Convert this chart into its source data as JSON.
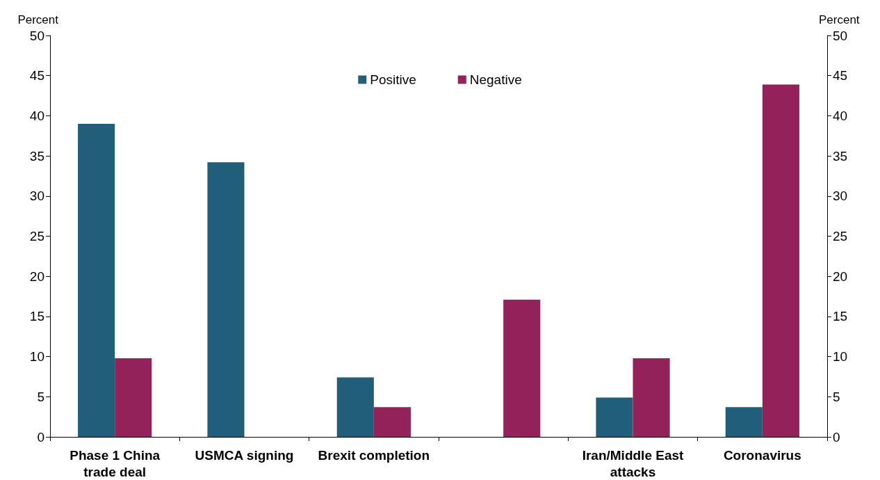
{
  "chart_data": {
    "type": "bar",
    "ylabel": "Percent",
    "y2label": "Percent",
    "categories": [
      "Phase 1 China\ntrade deal",
      "USMCA signing",
      "Brexit completion",
      null,
      "Iran/Middle East\nattacks",
      "Coronavirus"
    ],
    "series": [
      {
        "name": "Positive",
        "color": "#215e7a",
        "values": [
          39,
          34.2,
          7.4,
          0,
          4.9,
          3.7
        ]
      },
      {
        "name": "Negative",
        "color": "#93215a",
        "values": [
          9.8,
          0,
          3.7,
          17.1,
          9.8,
          43.9
        ]
      }
    ],
    "ylim": [
      0,
      50
    ],
    "yticks": [
      0,
      5,
      10,
      15,
      20,
      25,
      30,
      35,
      40,
      45,
      50
    ],
    "y2lim": [
      0,
      50
    ],
    "y2ticks": [
      0,
      5,
      10,
      15,
      20,
      25,
      30,
      35,
      40,
      45,
      50
    ],
    "grid": false,
    "legend": "top"
  }
}
